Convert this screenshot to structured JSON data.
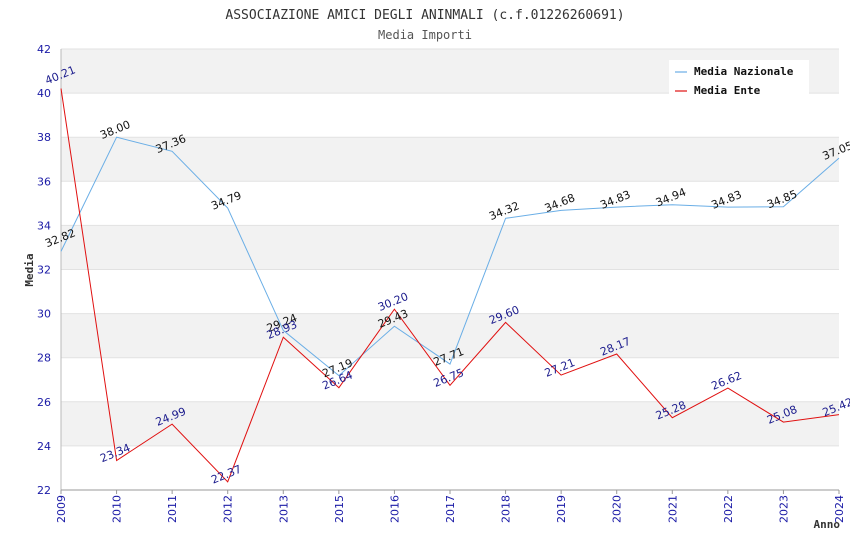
{
  "chart_data": {
    "type": "line",
    "title": "ASSOCIAZIONE AMICI DEGLI ANINMALI (c.f.01226260691)",
    "subtitle": "Media Importi",
    "xlabel": "Anno",
    "ylabel": "Media",
    "ylim": [
      22,
      42
    ],
    "yticks": [
      22,
      24,
      26,
      28,
      30,
      32,
      34,
      36,
      38,
      40,
      42
    ],
    "grid": true,
    "legend_position": "top-right",
    "categories": [
      "2009",
      "2010",
      "2011",
      "2012",
      "2013",
      "2015",
      "2016",
      "2017",
      "2018",
      "2019",
      "2020",
      "2021",
      "2022",
      "2023",
      "2024"
    ],
    "series": [
      {
        "name": "Media Nazionale",
        "color": "#6aaee6",
        "values": [
          32.82,
          38.0,
          37.36,
          34.79,
          29.24,
          27.19,
          29.43,
          27.71,
          34.32,
          34.68,
          34.83,
          34.94,
          34.83,
          34.85,
          37.05
        ],
        "labels": [
          "32.82",
          "38.00",
          "37.36",
          "34.79",
          "29.24",
          "27.19",
          "29.43",
          "27.71",
          "34.32",
          "34.68",
          "34.83",
          "34.94",
          "34.83",
          "34.85",
          "37.05"
        ]
      },
      {
        "name": "Media Ente",
        "color": "#e01010",
        "values": [
          40.21,
          23.34,
          24.99,
          22.37,
          28.93,
          26.64,
          30.2,
          26.75,
          29.6,
          27.21,
          28.17,
          25.28,
          26.62,
          25.08,
          25.42
        ],
        "labels": [
          "40.21",
          "23.34",
          "24.99",
          "22.37",
          "28.93",
          "26.64",
          "30.20",
          "26.75",
          "29.60",
          "27.21",
          "28.17",
          "25.28",
          "26.62",
          "25.08",
          "25.42"
        ]
      }
    ]
  }
}
